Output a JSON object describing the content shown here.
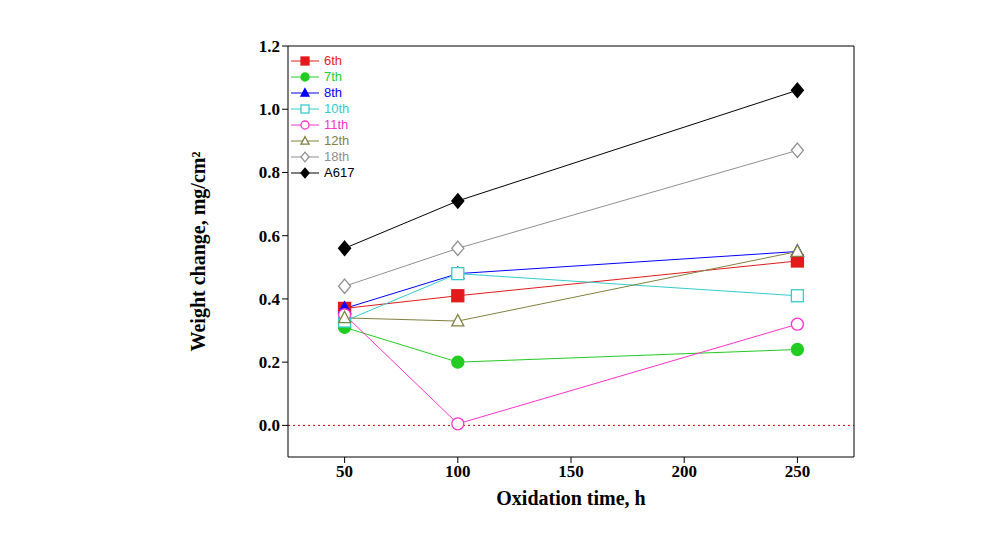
{
  "chart_data": {
    "type": "line",
    "x_label": "Oxidation time, h",
    "y_label": "Weight change, mg/cm²",
    "x": [
      50,
      100,
      250
    ],
    "xlim": [
      25,
      275
    ],
    "xticks": [
      50,
      100,
      150,
      200,
      250
    ],
    "ylim": [
      -0.1,
      1.2
    ],
    "yticks": [
      {
        "value": 0,
        "label": "0.0"
      },
      0.2,
      0.4,
      0.6,
      0.8,
      {
        "value": 1,
        "label": "1.0"
      },
      1.2
    ],
    "legend": "upper left",
    "reference_lines": [
      {
        "y": 0,
        "color": "#cc0000",
        "line_style": "dotted"
      }
    ],
    "series": [
      {
        "name": "6th",
        "color": "#e31a1c",
        "marker": "square",
        "values": [
          0.37,
          0.41,
          0.52
        ]
      },
      {
        "name": "7th",
        "color": "#22cc22",
        "marker": "circle",
        "values": [
          0.31,
          0.2,
          0.24
        ]
      },
      {
        "name": "8th",
        "color": "#0000ff",
        "marker": "triangle",
        "values": [
          0.37,
          0.48,
          0.55
        ]
      },
      {
        "name": "10th",
        "color": "#33cccc",
        "marker": "open-square",
        "values": [
          0.33,
          0.48,
          0.41
        ]
      },
      {
        "name": "11th",
        "color": "#ff33cc",
        "marker": "open-circle",
        "values": [
          0.35,
          0.005,
          0.32
        ]
      },
      {
        "name": "12th",
        "color": "#808040",
        "marker": "open-triangle",
        "values": [
          0.34,
          0.33,
          0.55
        ]
      },
      {
        "name": "18th",
        "color": "#909090",
        "marker": "open-diamond",
        "values": [
          0.44,
          0.56,
          0.87
        ]
      },
      {
        "name": "A617",
        "color": "#000000",
        "marker": "diamond",
        "values": [
          0.56,
          0.71,
          1.06
        ]
      }
    ]
  }
}
